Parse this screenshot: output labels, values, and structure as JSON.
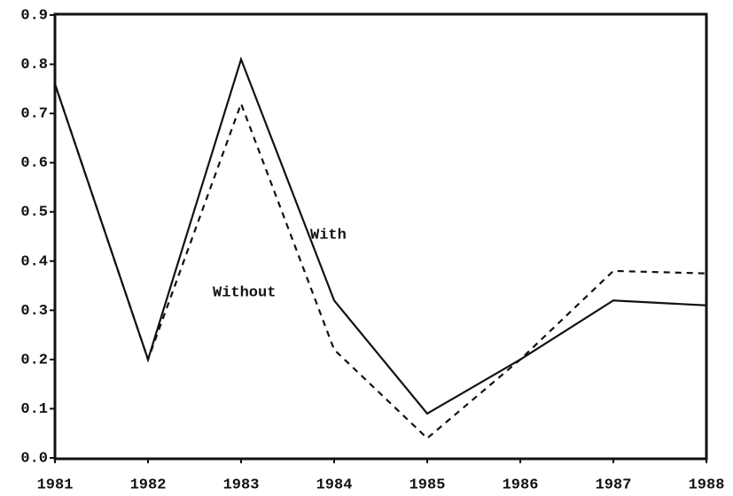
{
  "chart_data": {
    "type": "line",
    "x": [
      1981,
      1982,
      1983,
      1984,
      1985,
      1986,
      1987,
      1988
    ],
    "series": [
      {
        "name": "With",
        "color": "#111111",
        "dash": "solid",
        "values": [
          0.76,
          0.2,
          0.81,
          0.32,
          0.09,
          0.2,
          0.32,
          0.31
        ]
      },
      {
        "name": "Without",
        "color": "#111111",
        "dash": "dashed",
        "values": [
          0.76,
          0.2,
          0.72,
          0.22,
          0.04,
          0.2,
          0.38,
          0.375
        ]
      }
    ],
    "xlim": [
      1981,
      1988
    ],
    "xticks": [
      1981,
      1982,
      1983,
      1984,
      1985,
      1986,
      1987,
      1988
    ],
    "ylim": [
      0,
      0.9
    ],
    "yticks": [
      {
        "value": 0,
        "label": "0.0"
      },
      0.1,
      0.2,
      0.3,
      0.4,
      0.5,
      0.6,
      0.7,
      0.8,
      0.9
    ],
    "grid": false
  }
}
